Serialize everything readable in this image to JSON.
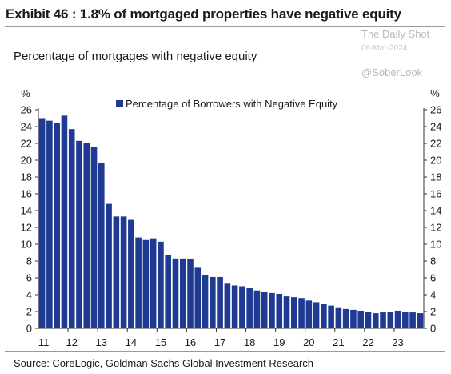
{
  "title": "Exhibit 46 : 1.8% of mortgaged properties have negative equity",
  "subtitle": "Percentage of mortgages with negative equity",
  "watermark": {
    "line1": "The Daily Shot",
    "date": "06-Mar-2024",
    "handle": "@SoberLook"
  },
  "source": "Source: CoreLogic, Goldman Sachs Global Investment Research",
  "chart_data": {
    "type": "bar",
    "unit_left": "%",
    "unit_right": "%",
    "ylim": [
      0,
      26
    ],
    "yticks": [
      0,
      2,
      4,
      6,
      8,
      10,
      12,
      14,
      16,
      18,
      20,
      22,
      24,
      26
    ],
    "xticks": [
      "11",
      "12",
      "13",
      "14",
      "15",
      "16",
      "17",
      "18",
      "19",
      "20",
      "21",
      "22",
      "23"
    ],
    "legend": "top-center",
    "bar_color": "#1f3a93",
    "series": [
      {
        "name": "Percentage of Borrowers with Negative Equity",
        "x": [
          "2011Q1",
          "2011Q2",
          "2011Q3",
          "2011Q4",
          "2012Q1",
          "2012Q2",
          "2012Q3",
          "2012Q4",
          "2013Q1",
          "2013Q2",
          "2013Q3",
          "2013Q4",
          "2014Q1",
          "2014Q2",
          "2014Q3",
          "2014Q4",
          "2015Q1",
          "2015Q2",
          "2015Q3",
          "2015Q4",
          "2016Q1",
          "2016Q2",
          "2016Q3",
          "2016Q4",
          "2017Q1",
          "2017Q2",
          "2017Q3",
          "2017Q4",
          "2018Q1",
          "2018Q2",
          "2018Q3",
          "2018Q4",
          "2019Q1",
          "2019Q2",
          "2019Q3",
          "2019Q4",
          "2020Q1",
          "2020Q2",
          "2020Q3",
          "2020Q4",
          "2021Q1",
          "2021Q2",
          "2021Q3",
          "2021Q4",
          "2022Q1",
          "2022Q2",
          "2022Q3",
          "2022Q4",
          "2023Q1",
          "2023Q2",
          "2023Q3",
          "2023Q4"
        ],
        "values": [
          25.0,
          24.7,
          24.4,
          25.3,
          23.7,
          22.3,
          22.0,
          21.6,
          19.7,
          14.8,
          13.3,
          13.3,
          12.9,
          10.8,
          10.5,
          10.7,
          10.3,
          8.7,
          8.3,
          8.3,
          8.2,
          7.2,
          6.3,
          6.1,
          6.1,
          5.4,
          5.1,
          5.0,
          4.8,
          4.5,
          4.3,
          4.2,
          4.1,
          3.8,
          3.7,
          3.6,
          3.3,
          3.1,
          2.9,
          2.7,
          2.5,
          2.3,
          2.2,
          2.1,
          2.0,
          1.8,
          1.9,
          2.0,
          2.1,
          2.0,
          1.9,
          1.8
        ]
      }
    ]
  }
}
